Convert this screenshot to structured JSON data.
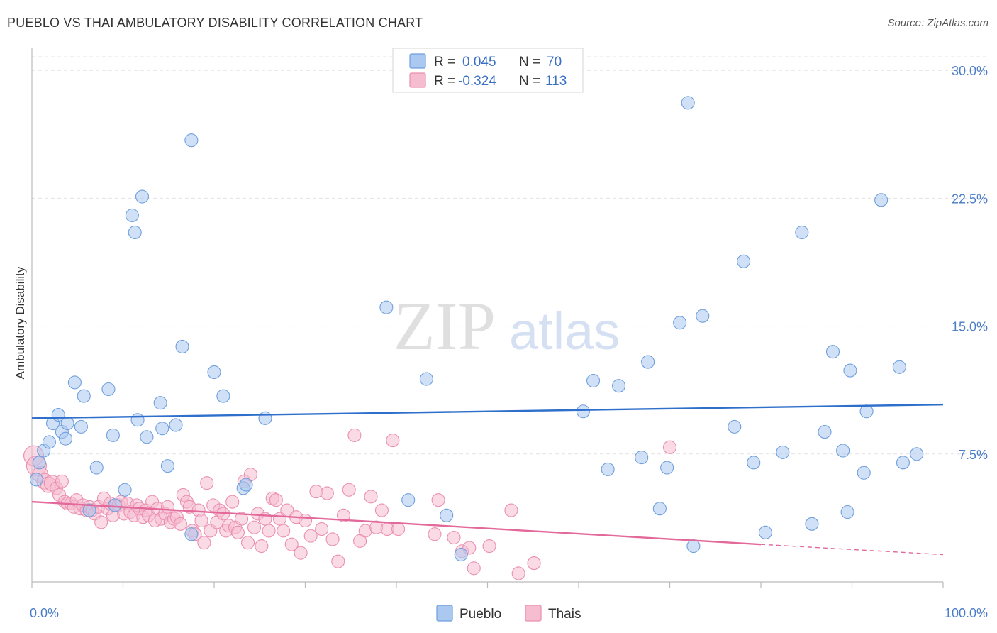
{
  "title": "PUEBLO VS THAI AMBULATORY DISABILITY CORRELATION CHART",
  "source": "Source: ZipAtlas.com",
  "watermark": {
    "zip": "ZIP",
    "atlas": "atlas"
  },
  "legend": {
    "rows": [
      {
        "r_label": "R =",
        "r_value": "0.045",
        "n_label": "N =",
        "n_value": "70"
      },
      {
        "r_label": "R =",
        "r_value": "-0.324",
        "n_label": "N =",
        "n_value": "113"
      }
    ]
  },
  "bottom_legend": [
    "Pueblo",
    "Thais"
  ],
  "colors": {
    "pueblo_fill": "#aac8f0",
    "pueblo_stroke": "#6f9fdc",
    "pueblo_line": "#2f6fcc",
    "thai_fill": "#f6bcd0",
    "thai_stroke": "#ea8fb0",
    "thai_line": "#e2699a",
    "axis_text": "#4a7cc7",
    "grid": "#e3e3e3"
  },
  "chart_data": {
    "type": "scatter",
    "title": "PUEBLO VS THAI AMBULATORY DISABILITY CORRELATION CHART",
    "xlabel": "",
    "ylabel": "Ambulatory Disability",
    "xlim": [
      0,
      100
    ],
    "ylim": [
      0,
      30.8
    ],
    "x_tick_labels": [
      "0.0%",
      "100.0%"
    ],
    "y_ticks": [
      7.5,
      15.0,
      22.5,
      30.0
    ],
    "y_tick_labels": [
      "7.5%",
      "15.0%",
      "22.5%",
      "30.0%"
    ],
    "series": [
      {
        "name": "Pueblo",
        "r": 0.045,
        "n": 70,
        "trend": {
          "x0": 0,
          "y0": 9.6,
          "x1": 100,
          "y1": 10.4
        },
        "points": [
          [
            0.5,
            6.0
          ],
          [
            0.8,
            7.0
          ],
          [
            1.3,
            7.7
          ],
          [
            1.9,
            8.2
          ],
          [
            2.3,
            9.3
          ],
          [
            2.9,
            9.8
          ],
          [
            3.3,
            8.8
          ],
          [
            3.9,
            9.3
          ],
          [
            3.7,
            8.4
          ],
          [
            4.7,
            11.7
          ],
          [
            5.4,
            9.1
          ],
          [
            5.7,
            10.9
          ],
          [
            6.3,
            4.2
          ],
          [
            7.1,
            6.7
          ],
          [
            8.4,
            11.3
          ],
          [
            8.9,
            8.6
          ],
          [
            9.1,
            4.5
          ],
          [
            10.2,
            5.4
          ],
          [
            11.0,
            21.5
          ],
          [
            11.3,
            20.5
          ],
          [
            11.6,
            9.5
          ],
          [
            12.1,
            22.6
          ],
          [
            12.6,
            8.5
          ],
          [
            14.1,
            10.5
          ],
          [
            14.3,
            9.0
          ],
          [
            14.9,
            6.8
          ],
          [
            15.8,
            9.2
          ],
          [
            16.5,
            13.8
          ],
          [
            17.5,
            25.9
          ],
          [
            17.5,
            2.8
          ],
          [
            20.0,
            12.3
          ],
          [
            21.0,
            10.9
          ],
          [
            23.2,
            5.5
          ],
          [
            23.5,
            5.7
          ],
          [
            25.6,
            9.6
          ],
          [
            38.9,
            16.1
          ],
          [
            41.3,
            4.8
          ],
          [
            43.3,
            11.9
          ],
          [
            45.5,
            3.9
          ],
          [
            47.1,
            1.6
          ],
          [
            60.5,
            10.0
          ],
          [
            61.6,
            11.8
          ],
          [
            63.2,
            6.6
          ],
          [
            64.4,
            11.5
          ],
          [
            66.9,
            7.3
          ],
          [
            67.6,
            12.9
          ],
          [
            68.9,
            4.3
          ],
          [
            69.7,
            6.7
          ],
          [
            71.1,
            15.2
          ],
          [
            72.0,
            28.1
          ],
          [
            72.6,
            2.1
          ],
          [
            73.6,
            15.6
          ],
          [
            77.1,
            9.1
          ],
          [
            78.1,
            18.8
          ],
          [
            79.2,
            7.0
          ],
          [
            80.5,
            2.9
          ],
          [
            82.4,
            7.6
          ],
          [
            84.5,
            20.5
          ],
          [
            85.6,
            3.4
          ],
          [
            87.0,
            8.8
          ],
          [
            87.9,
            13.5
          ],
          [
            89.0,
            7.7
          ],
          [
            89.5,
            4.1
          ],
          [
            89.8,
            12.4
          ],
          [
            91.3,
            6.4
          ],
          [
            91.6,
            10.0
          ],
          [
            93.2,
            22.4
          ],
          [
            95.2,
            12.6
          ],
          [
            95.6,
            7.0
          ],
          [
            97.1,
            7.5
          ]
        ]
      },
      {
        "name": "Thais",
        "r": -0.324,
        "n": 113,
        "trend": {
          "x0": 0,
          "y0": 4.7,
          "x1": 80,
          "y1": 2.2,
          "dash_to_x": 100,
          "dash_to_y": 1.6
        },
        "points": [
          [
            0.2,
            7.4
          ],
          [
            0.5,
            6.8
          ],
          [
            0.9,
            6.3
          ],
          [
            1.4,
            5.9
          ],
          [
            1.8,
            5.7
          ],
          [
            2.2,
            5.8
          ],
          [
            2.7,
            5.5
          ],
          [
            3.0,
            5.1
          ],
          [
            3.3,
            5.9
          ],
          [
            3.6,
            4.7
          ],
          [
            3.9,
            4.6
          ],
          [
            4.3,
            4.6
          ],
          [
            4.6,
            4.4
          ],
          [
            4.9,
            4.8
          ],
          [
            5.3,
            4.3
          ],
          [
            5.6,
            4.5
          ],
          [
            6.0,
            4.2
          ],
          [
            6.3,
            4.4
          ],
          [
            6.6,
            4.2
          ],
          [
            6.9,
            4.0
          ],
          [
            7.3,
            4.4
          ],
          [
            7.6,
            3.5
          ],
          [
            7.9,
            4.9
          ],
          [
            8.3,
            4.3
          ],
          [
            8.6,
            4.6
          ],
          [
            8.9,
            3.9
          ],
          [
            9.2,
            4.5
          ],
          [
            9.5,
            4.5
          ],
          [
            9.8,
            4.7
          ],
          [
            10.1,
            4.0
          ],
          [
            10.5,
            4.6
          ],
          [
            10.8,
            4.1
          ],
          [
            11.2,
            3.9
          ],
          [
            11.5,
            4.5
          ],
          [
            11.8,
            4.3
          ],
          [
            12.2,
            3.8
          ],
          [
            12.5,
            4.2
          ],
          [
            12.8,
            3.9
          ],
          [
            13.2,
            4.7
          ],
          [
            13.5,
            3.6
          ],
          [
            13.8,
            4.3
          ],
          [
            14.2,
            3.7
          ],
          [
            14.6,
            4.0
          ],
          [
            14.9,
            4.4
          ],
          [
            15.2,
            3.5
          ],
          [
            15.6,
            3.7
          ],
          [
            15.9,
            3.8
          ],
          [
            16.3,
            3.4
          ],
          [
            16.6,
            5.1
          ],
          [
            17.0,
            4.7
          ],
          [
            17.3,
            4.4
          ],
          [
            17.6,
            3.0
          ],
          [
            17.9,
            2.8
          ],
          [
            18.3,
            4.2
          ],
          [
            18.6,
            3.6
          ],
          [
            18.9,
            2.3
          ],
          [
            19.2,
            5.8
          ],
          [
            19.6,
            3.0
          ],
          [
            19.9,
            4.5
          ],
          [
            20.3,
            3.5
          ],
          [
            20.6,
            4.2
          ],
          [
            21.0,
            4.0
          ],
          [
            21.3,
            3.0
          ],
          [
            21.6,
            3.3
          ],
          [
            22.0,
            4.7
          ],
          [
            22.3,
            3.2
          ],
          [
            22.6,
            2.9
          ],
          [
            23.0,
            3.7
          ],
          [
            23.3,
            5.9
          ],
          [
            23.7,
            2.3
          ],
          [
            24.0,
            6.3
          ],
          [
            24.4,
            3.2
          ],
          [
            24.8,
            4.0
          ],
          [
            25.2,
            2.1
          ],
          [
            25.6,
            3.7
          ],
          [
            26.0,
            3.0
          ],
          [
            26.4,
            4.9
          ],
          [
            26.8,
            4.8
          ],
          [
            27.2,
            3.7
          ],
          [
            27.6,
            3.0
          ],
          [
            28.0,
            4.2
          ],
          [
            28.5,
            2.2
          ],
          [
            29.0,
            3.8
          ],
          [
            29.5,
            1.7
          ],
          [
            30.0,
            3.6
          ],
          [
            30.6,
            2.7
          ],
          [
            31.2,
            5.3
          ],
          [
            31.8,
            3.1
          ],
          [
            32.4,
            5.2
          ],
          [
            33.0,
            2.5
          ],
          [
            33.6,
            1.2
          ],
          [
            34.2,
            3.9
          ],
          [
            34.8,
            5.4
          ],
          [
            35.4,
            8.6
          ],
          [
            36.0,
            2.4
          ],
          [
            36.6,
            3.0
          ],
          [
            37.2,
            5.0
          ],
          [
            37.8,
            3.2
          ],
          [
            38.4,
            4.2
          ],
          [
            39.0,
            3.1
          ],
          [
            39.6,
            8.3
          ],
          [
            40.2,
            3.1
          ],
          [
            44.2,
            2.8
          ],
          [
            44.6,
            4.8
          ],
          [
            46.3,
            2.6
          ],
          [
            47.2,
            1.8
          ],
          [
            48.0,
            2.0
          ],
          [
            48.5,
            0.8
          ],
          [
            50.2,
            2.1
          ],
          [
            52.6,
            4.2
          ],
          [
            53.4,
            0.5
          ],
          [
            55.1,
            1.1
          ],
          [
            70.0,
            7.9
          ]
        ]
      }
    ]
  }
}
